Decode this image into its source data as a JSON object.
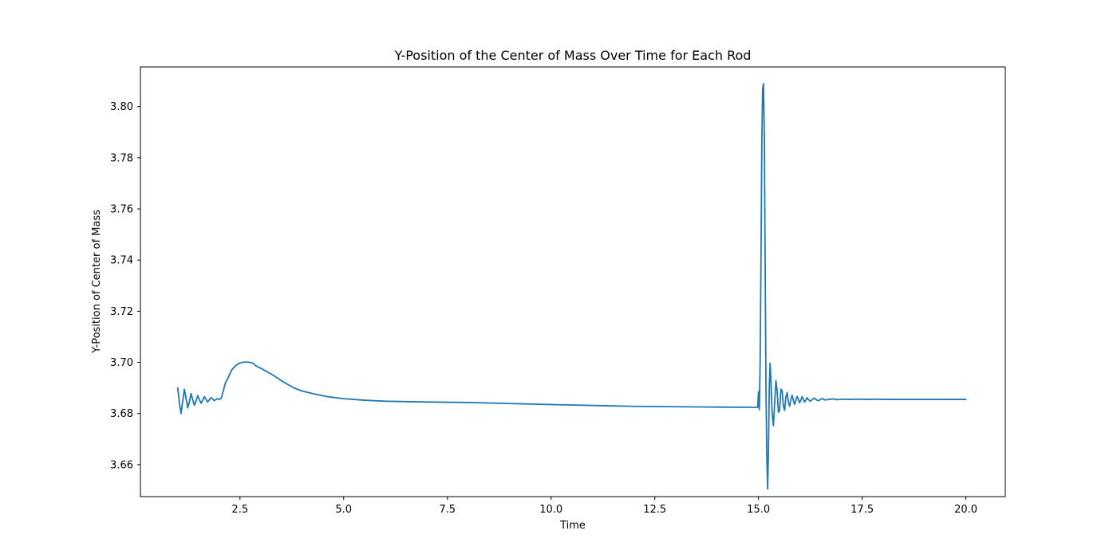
{
  "chart_data": {
    "type": "line",
    "title": "Y-Position of the Center of Mass Over Time for Each Rod",
    "xlabel": "Time",
    "ylabel": "Y-Position of Center of Mass",
    "xlim": [
      0.1,
      20.95
    ],
    "ylim": [
      3.6475,
      3.8155
    ],
    "xticks": [
      2.5,
      5.0,
      7.5,
      10.0,
      12.5,
      15.0,
      17.5,
      20.0
    ],
    "xtick_labels": [
      "2.5",
      "5.0",
      "7.5",
      "10.0",
      "12.5",
      "15.0",
      "17.5",
      "20.0"
    ],
    "yticks": [
      3.66,
      3.68,
      3.7,
      3.72,
      3.74,
      3.76,
      3.78,
      3.8
    ],
    "ytick_labels": [
      "3.66",
      "3.68",
      "3.70",
      "3.72",
      "3.74",
      "3.76",
      "3.78",
      "3.80"
    ],
    "grid": false,
    "line_color": "#1f77b4",
    "series": [
      {
        "x": [
          1.0,
          1.04,
          1.08,
          1.12,
          1.16,
          1.2,
          1.24,
          1.28,
          1.32,
          1.36,
          1.4,
          1.44,
          1.48,
          1.52,
          1.56,
          1.6,
          1.64,
          1.68,
          1.72,
          1.76,
          1.8,
          1.84,
          1.88,
          1.92,
          1.96,
          2.0,
          2.05,
          2.1,
          2.15,
          2.2,
          2.3,
          2.4,
          2.5,
          2.6,
          2.7,
          2.8,
          2.9,
          3.0,
          3.1,
          3.3,
          3.5,
          3.8,
          4.0,
          4.3,
          4.6,
          5.0,
          5.5,
          6.0,
          7.0,
          8.0,
          10.0,
          12.0,
          14.0,
          14.98,
          15.0,
          15.02,
          15.04,
          15.06,
          15.08,
          15.1,
          15.12,
          15.14,
          15.16,
          15.18,
          15.2,
          15.22,
          15.24,
          15.26,
          15.28,
          15.3,
          15.33,
          15.36,
          15.39,
          15.42,
          15.45,
          15.48,
          15.51,
          15.54,
          15.57,
          15.6,
          15.63,
          15.66,
          15.69,
          15.72,
          15.75,
          15.78,
          15.81,
          15.84,
          15.87,
          15.9,
          15.93,
          15.96,
          15.99,
          16.02,
          16.05,
          16.08,
          16.11,
          16.14,
          16.17,
          16.2,
          16.25,
          16.3,
          16.35,
          16.4,
          16.45,
          16.5,
          16.55,
          16.6,
          16.7,
          16.8,
          16.9,
          17.0,
          17.2,
          17.4,
          17.6,
          17.8,
          18.0,
          18.5,
          19.0,
          20.0
        ],
        "y": [
          3.69,
          3.684,
          3.68,
          3.685,
          3.6895,
          3.686,
          3.6822,
          3.6845,
          3.6878,
          3.6855,
          3.6832,
          3.6848,
          3.687,
          3.6855,
          3.684,
          3.6852,
          3.6866,
          3.6855,
          3.6845,
          3.6853,
          3.6862,
          3.6857,
          3.685,
          3.6855,
          3.6858,
          3.6855,
          3.686,
          3.689,
          3.692,
          3.6935,
          3.697,
          3.6988,
          3.6998,
          3.7001,
          3.7001,
          3.6998,
          3.6985,
          3.6977,
          3.6968,
          3.695,
          3.6928,
          3.69,
          3.6888,
          3.6876,
          3.6866,
          3.6858,
          3.6852,
          3.6848,
          3.6845,
          3.6843,
          3.6835,
          3.6828,
          3.6825,
          3.6824,
          3.6885,
          3.6815,
          3.7,
          3.74,
          3.785,
          3.807,
          3.809,
          3.79,
          3.74,
          3.69,
          3.664,
          3.6505,
          3.665,
          3.69,
          3.6997,
          3.693,
          3.68,
          3.6752,
          3.684,
          3.6928,
          3.689,
          3.6805,
          3.6812,
          3.6895,
          3.6888,
          3.6828,
          3.6812,
          3.6865,
          3.6882,
          3.6845,
          3.6828,
          3.6855,
          3.6872,
          3.6852,
          3.6836,
          3.6851,
          3.6867,
          3.6857,
          3.6842,
          3.6852,
          3.6866,
          3.6856,
          3.6845,
          3.6852,
          3.6862,
          3.6855,
          3.6848,
          3.6855,
          3.686,
          3.6853,
          3.685,
          3.6856,
          3.6858,
          3.6853,
          3.6855,
          3.6857,
          3.6854,
          3.6856,
          3.6855,
          3.6856,
          3.6855,
          3.6856,
          3.6855,
          3.6855,
          3.6855,
          3.6855
        ]
      }
    ]
  }
}
